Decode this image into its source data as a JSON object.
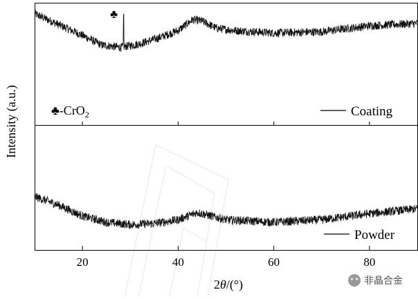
{
  "chart_data": {
    "type": "line",
    "xlabel_prefix": "2",
    "xlabel_theta": "θ",
    "xlabel_suffix": "/(°)",
    "ylabel": "Intensity (a.u.)",
    "xlim": [
      10,
      90
    ],
    "xticks": [
      "20",
      "40",
      "60",
      "80"
    ],
    "xtick_values": [
      20,
      40,
      60,
      80
    ],
    "ylim": [
      0,
      100
    ],
    "legend_placement": "bottom-right of each panel",
    "panels": [
      {
        "series_name": "Coating",
        "baseline": [
          [
            10,
            92
          ],
          [
            15,
            83
          ],
          [
            20,
            74
          ],
          [
            24,
            66
          ],
          [
            28,
            64
          ],
          [
            32,
            67
          ],
          [
            36,
            72
          ],
          [
            40,
            78
          ],
          [
            43,
            87
          ],
          [
            45,
            86
          ],
          [
            48,
            80
          ],
          [
            52,
            78
          ],
          [
            60,
            76
          ],
          [
            70,
            77
          ],
          [
            80,
            82
          ],
          [
            90,
            84
          ]
        ],
        "peak": {
          "x": 28.6,
          "height": 26
        }
      },
      {
        "series_name": "Powder",
        "baseline": [
          [
            10,
            43
          ],
          [
            15,
            36
          ],
          [
            20,
            27
          ],
          [
            25,
            22
          ],
          [
            30,
            20
          ],
          [
            35,
            21
          ],
          [
            40,
            24
          ],
          [
            44,
            30
          ],
          [
            46,
            28
          ],
          [
            50,
            24
          ],
          [
            60,
            22
          ],
          [
            70,
            24
          ],
          [
            80,
            29
          ],
          [
            90,
            33
          ]
        ]
      }
    ],
    "annotation_symbol": "♣",
    "annotation_text": "-CrO",
    "annotation_subscript": "2",
    "peak_marker": "♣"
  },
  "watermark": {
    "icon": "wechat-icon",
    "text": "非晶合金"
  }
}
